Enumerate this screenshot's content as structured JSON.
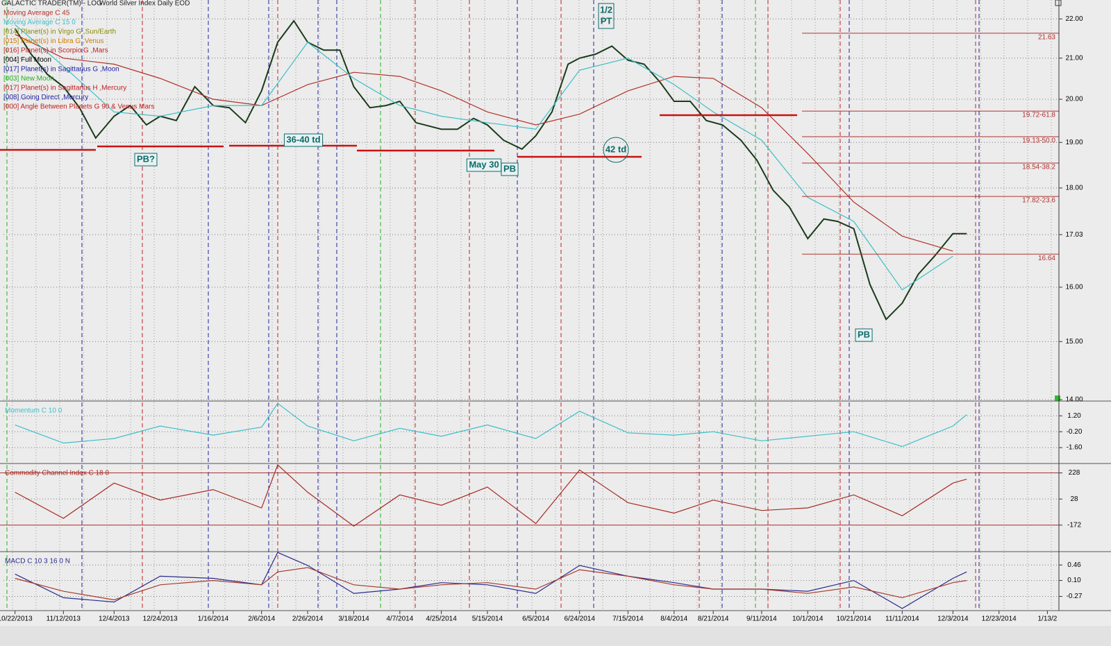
{
  "chart_data": [
    {
      "type": "line",
      "title": "GALACTIC TRADER(TM) - LOG",
      "subtitle": "World Silver Index Daily EOD",
      "log_scale": true,
      "grid": true,
      "xlim": [
        "10/17/2013",
        "1/18/2015"
      ],
      "ylim": [
        14,
        22.5
      ],
      "yticks": [
        {
          "value": 22,
          "label": "22.00"
        },
        {
          "value": 21,
          "label": "21.00"
        },
        {
          "value": 20,
          "label": "20.00"
        },
        {
          "value": 19,
          "label": "19.00"
        },
        {
          "value": 18,
          "label": "18.00"
        },
        {
          "value": 17.03,
          "label": "17.03"
        },
        {
          "value": 16,
          "label": "16.00"
        },
        {
          "value": 15,
          "label": "15.00"
        },
        {
          "value": 14,
          "label": "14.00"
        }
      ],
      "xticks": [
        "10/22/2013",
        "11/12/2013",
        "12/4/2013",
        "12/24/2013",
        "1/16/2014",
        "2/6/2014",
        "2/26/2014",
        "3/18/2014",
        "4/7/2014",
        "4/25/2014",
        "5/15/2014",
        "6/5/2014",
        "6/24/2014",
        "7/15/2014",
        "8/4/2014",
        "8/21/2014",
        "9/11/2014",
        "10/1/2014",
        "10/21/2014",
        "11/11/2014",
        "12/3/2014",
        "12/23/2014",
        {
          "value": "1/13/2015",
          "label": "1/13/2"
        }
      ],
      "series": [
        {
          "color": "#1a3a1a",
          "x": [
            "10/22/2013",
            "10/29/2013",
            "11/5/2013",
            "11/12/2013",
            "11/19/2013",
            "11/26/2013",
            "12/4/2013",
            "12/11/2013",
            "12/18/2013",
            "12/24/2013",
            "12/31/2013",
            "1/8/2014",
            "1/16/2014",
            "1/23/2014",
            "1/30/2014",
            "2/6/2014",
            "2/13/2014",
            "2/20/2014",
            "2/26/2014",
            "3/5/2014",
            "3/12/2014",
            "3/18/2014",
            "3/25/2014",
            "4/1/2014",
            "4/7/2014",
            "4/14/2014",
            "4/25/2014",
            "5/2/2014",
            "5/9/2014",
            "5/15/2014",
            "5/22/2014",
            "5/30/2014",
            "6/5/2014",
            "6/12/2014",
            "6/19/2014",
            "6/24/2014",
            "7/1/2014",
            "7/8/2014",
            "7/15/2014",
            "7/22/2014",
            "7/29/2014",
            "8/4/2014",
            "8/11/2014",
            "8/18/2014",
            "8/25/2014",
            "9/2/2014",
            "9/9/2014",
            "9/16/2014",
            "9/23/2014",
            "10/1/2014",
            "10/8/2014",
            "10/14/2014",
            "10/21/2014",
            "10/28/2014",
            "11/4/2014",
            "11/11/2014",
            "11/18/2014",
            "11/25/2014",
            "12/3/2014",
            "12/9/2014"
          ],
          "values": [
            21.75,
            21.1,
            20.6,
            20.3,
            19.8,
            19.1,
            19.6,
            19.85,
            19.4,
            19.6,
            19.5,
            20.3,
            19.85,
            19.8,
            19.45,
            20.2,
            21.4,
            21.95,
            21.4,
            21.2,
            21.2,
            20.3,
            19.8,
            19.85,
            19.95,
            19.45,
            19.3,
            19.3,
            19.55,
            19.4,
            19.05,
            18.85,
            19.15,
            19.7,
            20.85,
            21.0,
            21.1,
            21.3,
            20.95,
            20.85,
            20.4,
            19.95,
            19.95,
            19.5,
            19.4,
            19.05,
            18.6,
            17.95,
            17.6,
            16.95,
            17.35,
            17.3,
            17.15,
            16.05,
            15.4,
            15.7,
            16.25,
            16.6,
            17.05,
            17.05
          ]
        },
        {
          "name": "Moving Average C 45",
          "color": "#b0322a",
          "x": [
            "10/22/2013",
            "11/12/2013",
            "12/4/2013",
            "12/24/2013",
            "1/16/2014",
            "2/6/2014",
            "2/26/2014",
            "3/18/2014",
            "4/7/2014",
            "4/25/2014",
            "5/15/2014",
            "6/5/2014",
            "6/24/2014",
            "7/15/2014",
            "8/4/2014",
            "8/21/2014",
            "9/11/2014",
            "10/1/2014",
            "10/21/2014",
            "11/11/2014",
            "12/3/2014"
          ],
          "values": [
            21.6,
            21.0,
            20.85,
            20.5,
            20.0,
            19.85,
            20.35,
            20.65,
            20.55,
            20.2,
            19.7,
            19.4,
            19.65,
            20.2,
            20.55,
            20.5,
            19.8,
            18.75,
            17.7,
            17.0,
            16.7
          ]
        },
        {
          "name": "Moving Average C 15 0",
          "color": "#3bbfc9",
          "x": [
            "10/22/2013",
            "11/12/2013",
            "12/4/2013",
            "12/24/2013",
            "1/16/2014",
            "2/6/2014",
            "2/26/2014",
            "3/18/2014",
            "4/7/2014",
            "4/25/2014",
            "5/15/2014",
            "6/5/2014",
            "6/24/2014",
            "7/15/2014",
            "8/4/2014",
            "8/21/2014",
            "9/11/2014",
            "10/1/2014",
            "10/21/2014",
            "11/11/2014",
            "12/3/2014"
          ],
          "values": [
            21.85,
            20.8,
            19.7,
            19.6,
            19.85,
            19.85,
            21.4,
            20.5,
            19.85,
            19.6,
            19.45,
            19.3,
            20.7,
            21.0,
            20.35,
            19.7,
            19.05,
            17.8,
            17.3,
            15.95,
            16.6
          ]
        }
      ],
      "events": [
        {
          "name": "[014] Planet(s) in Virgo G ,Sun/Earth",
          "color": "#8a8a00"
        },
        {
          "name": "[015] Planet(s) in Libra G ,Venus",
          "color": "#d07a00"
        },
        {
          "name": "[016] Planet(s) in Scorpio G ,Mars",
          "color": "#c02020"
        },
        {
          "name": "[004] Full Moon",
          "color": "#000000"
        },
        {
          "name": "[017] Planet(s) in Sagittarius G ,Moon",
          "color": "#2020a0"
        },
        {
          "name": "[003] New Moon",
          "color": "#20b020"
        },
        {
          "name": "[017] Planet(s) in Sagittarius H ,Mercury",
          "color": "#c02020"
        },
        {
          "name": "[008] Going Direct ,Mercury",
          "color": "#2020a0"
        },
        {
          "name": "[000] Angle Between Planets G 90 & Venus Mars",
          "color": "#c02020"
        }
      ],
      "levels": [
        {
          "value": 21.63,
          "label": "21.63"
        },
        {
          "value": 19.72,
          "label": "19.72-61.8"
        },
        {
          "value": 19.13,
          "label": "19.13-50.0"
        },
        {
          "value": 18.54,
          "label": "18.54-38.2"
        },
        {
          "value": 17.82,
          "label": "17.82-23.6"
        },
        {
          "value": 16.64,
          "label": "16.64"
        }
      ],
      "annotations": [
        "PB?",
        "36-40 td",
        "May 30",
        "PB",
        "42 td",
        "1/2",
        "PT",
        "PB"
      ]
    },
    {
      "type": "line",
      "title": "Momentum C 10 0",
      "grid": true,
      "ylim": [
        -3.0,
        2.5
      ],
      "yticks": [
        {
          "value": 1.2,
          "label": "1.20"
        },
        {
          "value": -0.2,
          "label": "-0.20"
        },
        {
          "value": -1.6,
          "label": "-1.60"
        }
      ],
      "x": [
        "10/22/2013",
        "11/12/2013",
        "12/4/2013",
        "12/24/2013",
        "1/16/2014",
        "2/6/2014",
        "2/13/2014",
        "2/26/2014",
        "3/18/2014",
        "4/7/2014",
        "4/25/2014",
        "5/15/2014",
        "6/5/2014",
        "6/24/2014",
        "7/15/2014",
        "8/4/2014",
        "8/21/2014",
        "9/11/2014",
        "10/1/2014",
        "10/21/2014",
        "11/11/2014",
        "12/3/2014",
        "12/9/2014"
      ],
      "series": [
        {
          "color": "#3bbfc9",
          "values": [
            0.4,
            -1.2,
            -0.8,
            0.3,
            -0.5,
            0.2,
            2.3,
            0.3,
            -1.0,
            0.1,
            -0.6,
            0.4,
            -0.8,
            1.6,
            -0.3,
            -0.5,
            -0.2,
            -1.0,
            -0.6,
            -0.2,
            -1.5,
            0.3,
            1.3
          ]
        }
      ]
    },
    {
      "type": "line",
      "title": "Commodity Channel Index C 18 0",
      "grid": true,
      "ylim": [
        -375,
        300
      ],
      "yticks": [
        228,
        28,
        -172
      ],
      "ref_lines": [
        228,
        -172
      ],
      "x": [
        "10/22/2013",
        "11/12/2013",
        "12/4/2013",
        "12/24/2013",
        "1/16/2014",
        "2/6/2014",
        "2/13/2014",
        "2/26/2014",
        "3/18/2014",
        "4/7/2014",
        "4/25/2014",
        "5/15/2014",
        "6/5/2014",
        "6/24/2014",
        "7/15/2014",
        "8/4/2014",
        "8/21/2014",
        "9/11/2014",
        "10/1/2014",
        "10/21/2014",
        "11/11/2014",
        "12/3/2014",
        "12/9/2014"
      ],
      "series": [
        {
          "color": "#a82a22",
          "values": [
            80,
            -120,
            150,
            20,
            100,
            -40,
            290,
            80,
            -180,
            60,
            -20,
            120,
            -160,
            250,
            0,
            -80,
            20,
            -60,
            -40,
            60,
            -100,
            150,
            180
          ]
        }
      ]
    },
    {
      "type": "line",
      "title": "MACD C 10 3 16 0 N",
      "grid": true,
      "ylim": [
        -0.6,
        0.77
      ],
      "yticks": [
        0.46,
        {
          "value": 0.1,
          "label": "0.10"
        },
        -0.27
      ],
      "x": [
        "10/22/2013",
        "11/12/2013",
        "12/4/2013",
        "12/24/2013",
        "1/16/2014",
        "2/6/2014",
        "2/13/2014",
        "2/26/2014",
        "3/18/2014",
        "4/7/2014",
        "4/25/2014",
        "5/15/2014",
        "6/5/2014",
        "6/24/2014",
        "7/15/2014",
        "8/4/2014",
        "8/21/2014",
        "9/11/2014",
        "10/1/2014",
        "10/21/2014",
        "11/11/2014",
        "12/3/2014",
        "12/9/2014"
      ],
      "series": [
        {
          "color": "#2a2a90",
          "values": [
            0.25,
            -0.3,
            -0.4,
            0.2,
            0.15,
            0.0,
            0.75,
            0.45,
            -0.2,
            -0.1,
            0.05,
            0.0,
            -0.2,
            0.45,
            0.2,
            0.05,
            -0.1,
            -0.1,
            -0.15,
            0.1,
            -0.55,
            0.15,
            0.3
          ]
        },
        {
          "color": "#a83a2a",
          "values": [
            0.15,
            -0.15,
            -0.35,
            0.0,
            0.1,
            0.0,
            0.3,
            0.4,
            0.0,
            -0.1,
            0.0,
            0.05,
            -0.1,
            0.35,
            0.2,
            0.0,
            -0.1,
            -0.1,
            -0.2,
            -0.05,
            -0.3,
            0.05,
            0.1
          ]
        }
      ]
    }
  ]
}
